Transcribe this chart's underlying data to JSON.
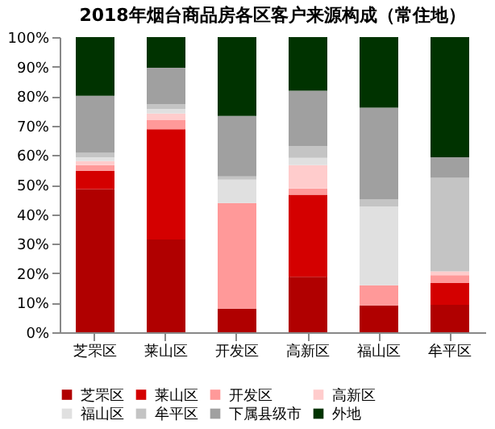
{
  "chart_data": {
    "type": "bar",
    "title": "2018年烟台商品房各区客户来源构成（常住地）",
    "stacked": true,
    "categories": [
      "芝罘区",
      "莱山区",
      "开发区",
      "高新区",
      "福山区",
      "牟平区"
    ],
    "series": [
      {
        "name": "芝罘区",
        "color": "#b00000",
        "values": [
          48.5,
          31.4,
          8.0,
          18.8,
          9.1,
          9.3
        ]
      },
      {
        "name": "莱山区",
        "color": "#d40000",
        "values": [
          6.2,
          37.4,
          0,
          27.8,
          0,
          7.4
        ]
      },
      {
        "name": "开发区",
        "color": "#ff9999",
        "values": [
          1.9,
          3.2,
          35.8,
          2.1,
          6.8,
          2.6
        ]
      },
      {
        "name": "高新区",
        "color": "#ffcccc",
        "values": [
          1.4,
          2.1,
          0,
          7.9,
          0,
          1.3
        ]
      },
      {
        "name": "福山区",
        "color": "#e0e0e0",
        "values": [
          1.3,
          1.5,
          7.9,
          2.5,
          26.7,
          0
        ]
      },
      {
        "name": "牟平区",
        "color": "#c4c4c4",
        "values": [
          1.5,
          1.7,
          1.1,
          4.0,
          2.5,
          31.7
        ]
      },
      {
        "name": "下属县级市",
        "color": "#a0a0a0",
        "values": [
          19.3,
          12.3,
          20.5,
          18.7,
          31.0,
          7.0
        ]
      },
      {
        "name": "外地",
        "color": "#003300",
        "values": [
          19.9,
          10.4,
          26.7,
          18.2,
          23.9,
          40.7
        ]
      }
    ],
    "ylim": [
      0,
      100
    ],
    "yticks": [
      {
        "value": 0,
        "label": "0%"
      },
      {
        "value": 10,
        "label": "10%"
      },
      {
        "value": 20,
        "label": "20%"
      },
      {
        "value": 30,
        "label": "30%"
      },
      {
        "value": 40,
        "label": "40%"
      },
      {
        "value": 50,
        "label": "50%"
      },
      {
        "value": 60,
        "label": "60%"
      },
      {
        "value": 70,
        "label": "70%"
      },
      {
        "value": 80,
        "label": "80%"
      },
      {
        "value": 90,
        "label": "90%"
      },
      {
        "value": 100,
        "label": "100%"
      }
    ],
    "grid": false,
    "legend": "bottom"
  }
}
